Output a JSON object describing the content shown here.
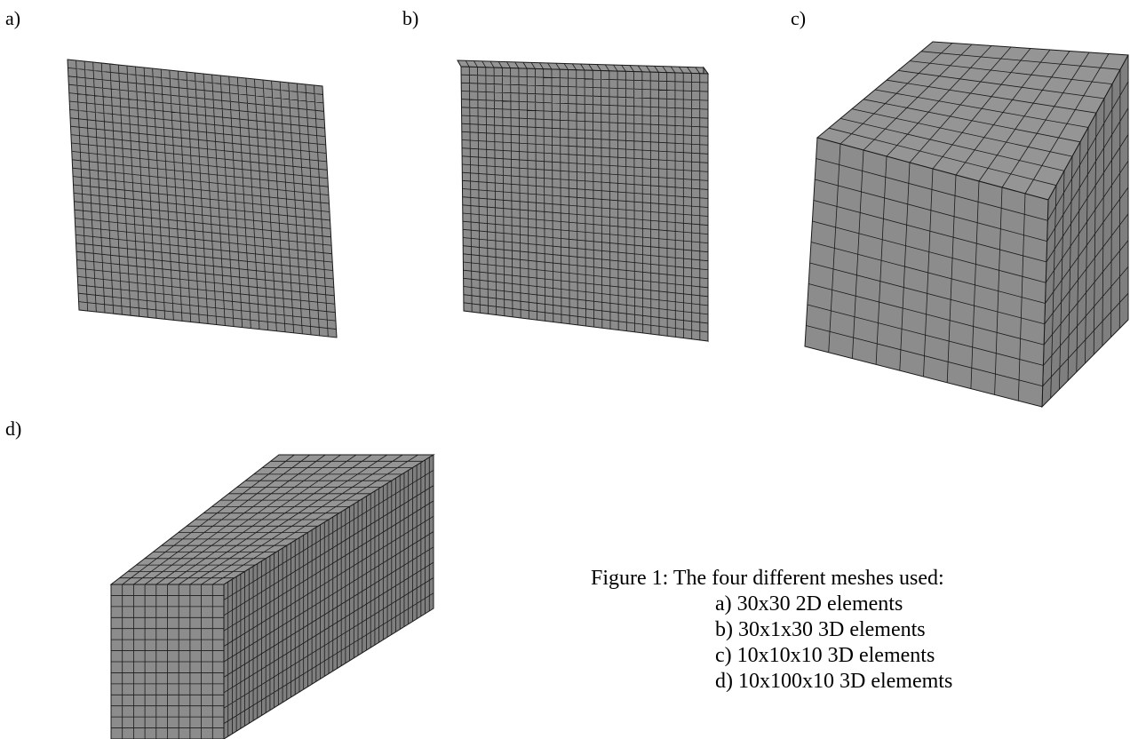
{
  "panels": [
    {
      "id": "a",
      "label": "a)",
      "kind": "2D",
      "elements": "30x30"
    },
    {
      "id": "b",
      "label": "b)",
      "kind": "3D",
      "elements": "30x1x30"
    },
    {
      "id": "c",
      "label": "c)",
      "kind": "3D",
      "elements": "10x10x10"
    },
    {
      "id": "d",
      "label": "d)",
      "kind": "3D",
      "elements": "10x100x10"
    }
  ],
  "caption": {
    "title": "Figure 1: The four different meshes used:",
    "items": [
      "a) 30x30 2D elements",
      "b) 30x1x30 3D elements",
      "c) 10x10x10 3D elements",
      "d) 10x100x10 3D elememts"
    ]
  },
  "colors": {
    "mesh_fill": "#8c8c8c",
    "mesh_fill_side": "#7f7f7f",
    "mesh_fill_top": "#959595",
    "grid_line": "#1a1a1a"
  }
}
